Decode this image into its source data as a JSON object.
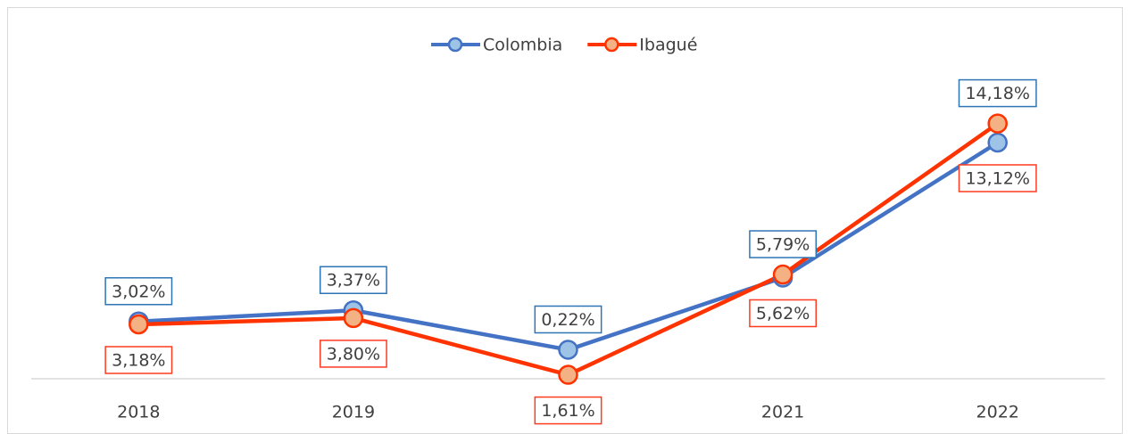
{
  "chart_data": {
    "type": "line",
    "categories": [
      "2018",
      "2019",
      "2020",
      "2021",
      "2022"
    ],
    "series": [
      {
        "name": "Colombia",
        "color": "#4472c4",
        "marker_color": "#9dc3e6",
        "label_color": "#ff3b1f",
        "values": [
          3.18,
          3.8,
          1.61,
          5.62,
          13.12
        ],
        "value_labels": [
          "3,18%",
          "3,80%",
          "1,61%",
          "5,62%",
          "13,12%"
        ]
      },
      {
        "name": "Ibagué",
        "color": "#ff3300",
        "marker_color": "#f4b183",
        "label_color": "#2e75b6",
        "values": [
          3.02,
          3.37,
          0.22,
          5.79,
          14.18
        ],
        "value_labels": [
          "3,02%",
          "3,37%",
          "0,22%",
          "5,79%",
          "14,18%"
        ]
      }
    ],
    "legend": "top"
  }
}
